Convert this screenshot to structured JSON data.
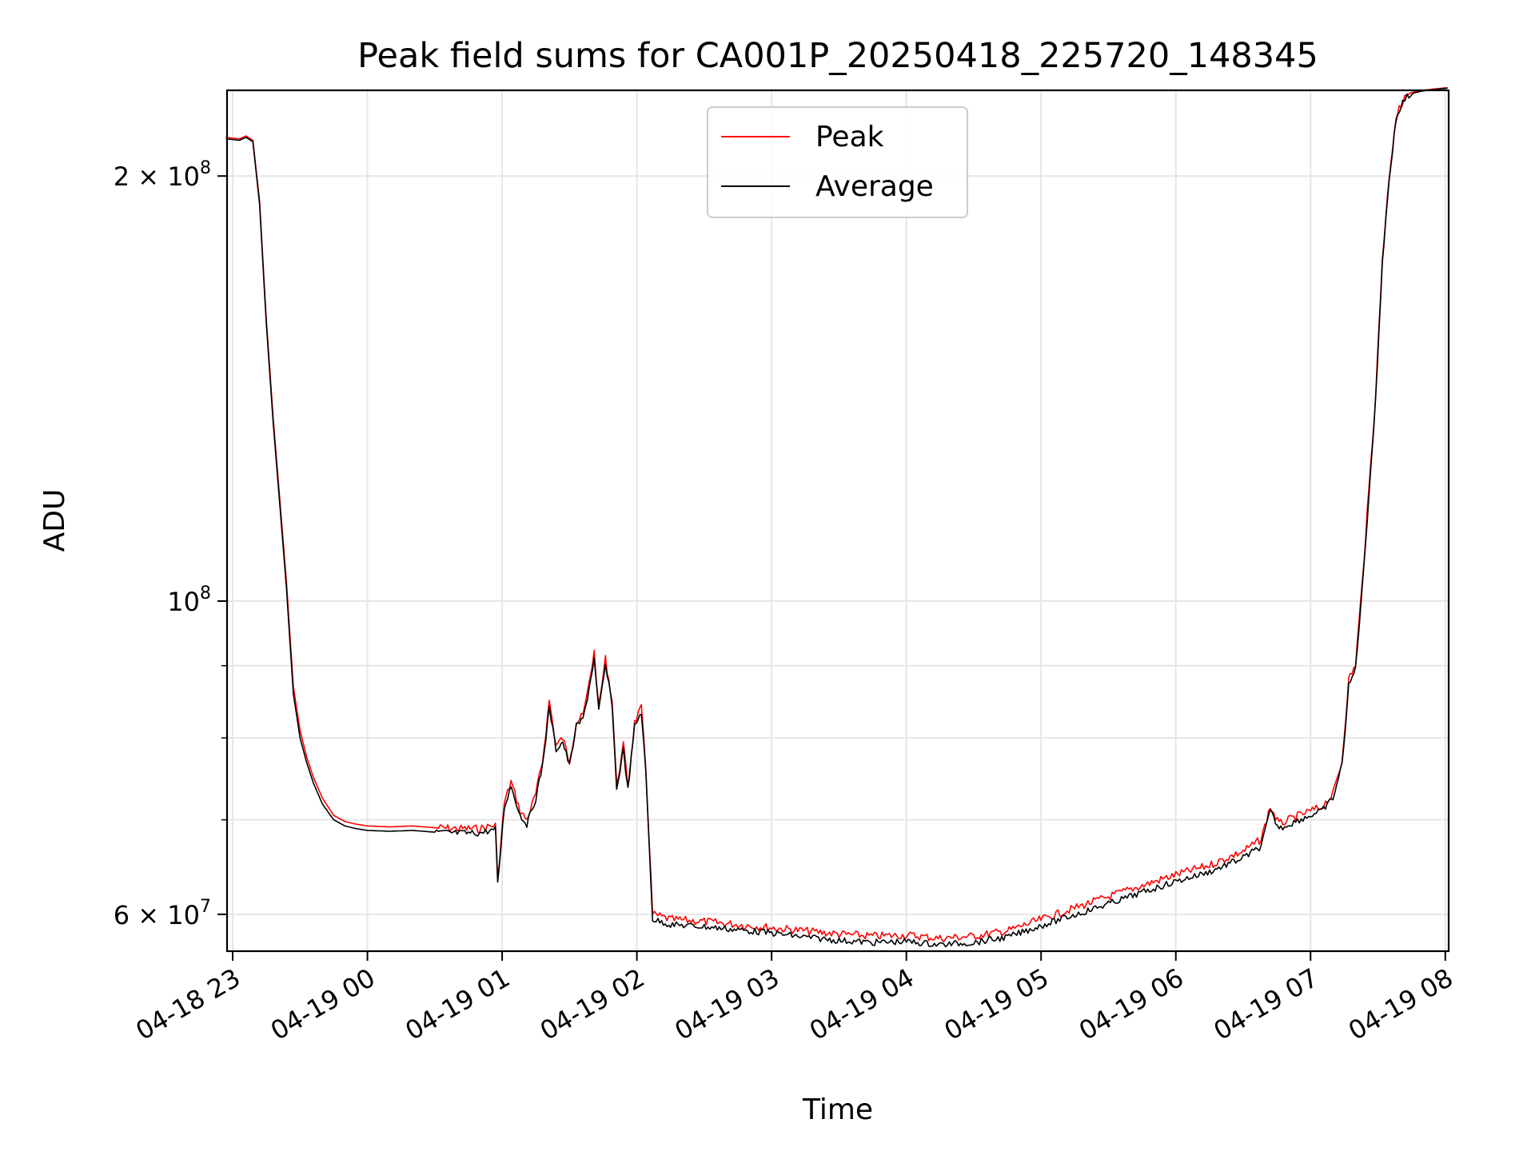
{
  "chart_data": {
    "type": "line",
    "title": "Peak field sums for CA001P_20250418_225720_148345",
    "xlabel": "Time",
    "ylabel": "ADU",
    "yscale": "log",
    "ylim": [
      56500000,
      230000000
    ],
    "xlim": [
      "04-18 22:57:30",
      "04-19 08:01:30"
    ],
    "grid": true,
    "legend_position": "top-center",
    "x_ticks": [
      {
        "label": "04-18 23",
        "hour": 23,
        "day": 18
      },
      {
        "label": "04-19 00",
        "hour": 0,
        "day": 19
      },
      {
        "label": "04-19 01",
        "hour": 1,
        "day": 19
      },
      {
        "label": "04-19 02",
        "hour": 2,
        "day": 19
      },
      {
        "label": "04-19 03",
        "hour": 3,
        "day": 19
      },
      {
        "label": "04-19 04",
        "hour": 4,
        "day": 19
      },
      {
        "label": "04-19 05",
        "hour": 5,
        "day": 19
      },
      {
        "label": "04-19 06",
        "hour": 6,
        "day": 19
      },
      {
        "label": "04-19 07",
        "hour": 7,
        "day": 19
      },
      {
        "label": "04-19 08",
        "hour": 8,
        "day": 19
      }
    ],
    "y_major_ticks": [
      {
        "label_base": "2 × 10",
        "label_exp": "8",
        "value": 200000000
      },
      {
        "label_base": "10",
        "label_exp": "8",
        "value": 100000000
      },
      {
        "label_base": "6 × 10",
        "label_exp": "7",
        "value": 60000000
      }
    ],
    "y_minor_ticks": [
      70000000,
      80000000,
      90000000
    ],
    "series": [
      {
        "name": "Peak",
        "color": "#ff0000",
        "x": [
          "04-18 22:57",
          "04-18 23:03",
          "04-18 23:06",
          "04-18 23:09",
          "04-18 23:12",
          "04-18 23:15",
          "04-18 23:18",
          "04-18 23:21",
          "04-18 23:24",
          "04-18 23:27",
          "04-18 23:30",
          "04-18 23:33",
          "04-18 23:36",
          "04-18 23:40",
          "04-18 23:45",
          "04-18 23:50",
          "04-18 23:55",
          "04-19 00:00",
          "04-19 00:10",
          "04-19 00:20",
          "04-19 00:30",
          "04-19 00:40",
          "04-19 00:50",
          "04-19 00:57",
          "04-19 00:58",
          "04-19 01:01",
          "04-19 01:04",
          "04-19 01:08",
          "04-19 01:11",
          "04-19 01:15",
          "04-19 01:18",
          "04-19 01:21",
          "04-19 01:24",
          "04-19 01:27",
          "04-19 01:30",
          "04-19 01:33",
          "04-19 01:36",
          "04-19 01:38",
          "04-19 01:41",
          "04-19 01:43",
          "04-19 01:46",
          "04-19 01:49",
          "04-19 01:51",
          "04-19 01:54",
          "04-19 01:56",
          "04-19 01:59",
          "04-19 02:02",
          "04-19 02:04",
          "04-19 02:07",
          "04-19 02:15",
          "04-19 02:30",
          "04-19 02:45",
          "04-19 03:00",
          "04-19 03:15",
          "04-19 03:30",
          "04-19 03:45",
          "04-19 04:00",
          "04-19 04:15",
          "04-19 04:30",
          "04-19 04:45",
          "04-19 05:00",
          "04-19 05:20",
          "04-19 05:40",
          "04-19 06:00",
          "04-19 06:15",
          "04-19 06:30",
          "04-19 06:38",
          "04-19 06:42",
          "04-19 06:46",
          "04-19 06:55",
          "04-19 07:05",
          "04-19 07:10",
          "04-19 07:14",
          "04-19 07:17",
          "04-19 07:20",
          "04-19 07:23",
          "04-19 07:26",
          "04-19 07:29",
          "04-19 07:32",
          "04-19 07:35",
          "04-19 07:38",
          "04-19 07:41",
          "04-19 07:43",
          "04-19 07:46",
          "04-19 07:50",
          "04-19 07:55",
          "04-19 08:01"
        ],
        "y": [
          213000000,
          212500000,
          213500000,
          212000000,
          192000000,
          158000000,
          135000000,
          118000000,
          103000000,
          87000000,
          81000000,
          77500000,
          75000000,
          72500000,
          70500000,
          69800000,
          69500000,
          69300000,
          69200000,
          69300000,
          69100000,
          69000000,
          69000000,
          69400000,
          63500000,
          72000000,
          74500000,
          71000000,
          70000000,
          73000000,
          77000000,
          85000000,
          79000000,
          80000000,
          77000000,
          82000000,
          83000000,
          86000000,
          92000000,
          84000000,
          91000000,
          85000000,
          74000000,
          79000000,
          74000000,
          82000000,
          84000000,
          76000000,
          60000000,
          59500000,
          59300000,
          59000000,
          58700000,
          58400000,
          58100000,
          57900000,
          58000000,
          57700000,
          57900000,
          58400000,
          59500000,
          61000000,
          62500000,
          64000000,
          65000000,
          66500000,
          67800000,
          71500000,
          69500000,
          70500000,
          71500000,
          73000000,
          77000000,
          88000000,
          90000000,
          103000000,
          120000000,
          140000000,
          175000000,
          200000000,
          220000000,
          226000000,
          228000000,
          229500000,
          230000000,
          230500000,
          231000000
        ]
      },
      {
        "name": "Average",
        "color": "#000000",
        "x": [
          "04-18 22:57",
          "04-18 23:03",
          "04-18 23:06",
          "04-18 23:09",
          "04-18 23:12",
          "04-18 23:15",
          "04-18 23:18",
          "04-18 23:21",
          "04-18 23:24",
          "04-18 23:27",
          "04-18 23:30",
          "04-18 23:33",
          "04-18 23:36",
          "04-18 23:40",
          "04-18 23:45",
          "04-18 23:50",
          "04-18 23:55",
          "04-19 00:00",
          "04-19 00:10",
          "04-19 00:20",
          "04-19 00:30",
          "04-19 00:40",
          "04-19 00:50",
          "04-19 00:57",
          "04-19 00:58",
          "04-19 01:01",
          "04-19 01:04",
          "04-19 01:08",
          "04-19 01:11",
          "04-19 01:15",
          "04-19 01:18",
          "04-19 01:21",
          "04-19 01:24",
          "04-19 01:27",
          "04-19 01:30",
          "04-19 01:33",
          "04-19 01:36",
          "04-19 01:38",
          "04-19 01:41",
          "04-19 01:43",
          "04-19 01:46",
          "04-19 01:49",
          "04-19 01:51",
          "04-19 01:54",
          "04-19 01:56",
          "04-19 01:59",
          "04-19 02:02",
          "04-19 02:04",
          "04-19 02:07",
          "04-19 02:15",
          "04-19 02:30",
          "04-19 02:45",
          "04-19 03:00",
          "04-19 03:15",
          "04-19 03:30",
          "04-19 03:45",
          "04-19 04:00",
          "04-19 04:15",
          "04-19 04:30",
          "04-19 04:45",
          "04-19 05:00",
          "04-19 05:20",
          "04-19 05:40",
          "04-19 06:00",
          "04-19 06:15",
          "04-19 06:30",
          "04-19 06:38",
          "04-19 06:42",
          "04-19 06:46",
          "04-19 06:55",
          "04-19 07:05",
          "04-19 07:10",
          "04-19 07:14",
          "04-19 07:17",
          "04-19 07:20",
          "04-19 07:23",
          "04-19 07:26",
          "04-19 07:29",
          "04-19 07:32",
          "04-19 07:35",
          "04-19 07:38",
          "04-19 07:41",
          "04-19 07:43",
          "04-19 07:46",
          "04-19 07:50",
          "04-19 07:55",
          "04-19 08:01"
        ],
        "y": [
          212500000,
          212000000,
          213000000,
          211500000,
          191000000,
          157000000,
          134000000,
          117000000,
          102000000,
          86000000,
          80000000,
          76800000,
          74300000,
          71800000,
          70000000,
          69300000,
          69000000,
          68800000,
          68700000,
          68800000,
          68600000,
          68500000,
          68500000,
          68900000,
          63000000,
          71500000,
          74000000,
          70500000,
          69500000,
          72500000,
          76500000,
          84000000,
          78500000,
          79500000,
          76500000,
          81500000,
          82500000,
          85500000,
          91000000,
          83500000,
          90000000,
          84500000,
          73500000,
          78500000,
          73500000,
          81500000,
          83500000,
          75500000,
          59500000,
          59000000,
          58800000,
          58500000,
          58200000,
          57800000,
          57500000,
          57300000,
          57400000,
          57100000,
          57300000,
          57800000,
          58900000,
          60300000,
          61800000,
          63300000,
          64300000,
          65800000,
          67000000,
          71000000,
          69000000,
          70000000,
          71000000,
          72500000,
          76500000,
          87000000,
          89500000,
          102000000,
          119000000,
          139000000,
          174000000,
          199000000,
          219000000,
          225500000,
          227500000,
          229000000,
          229800000,
          230300000,
          230800000
        ]
      }
    ]
  }
}
